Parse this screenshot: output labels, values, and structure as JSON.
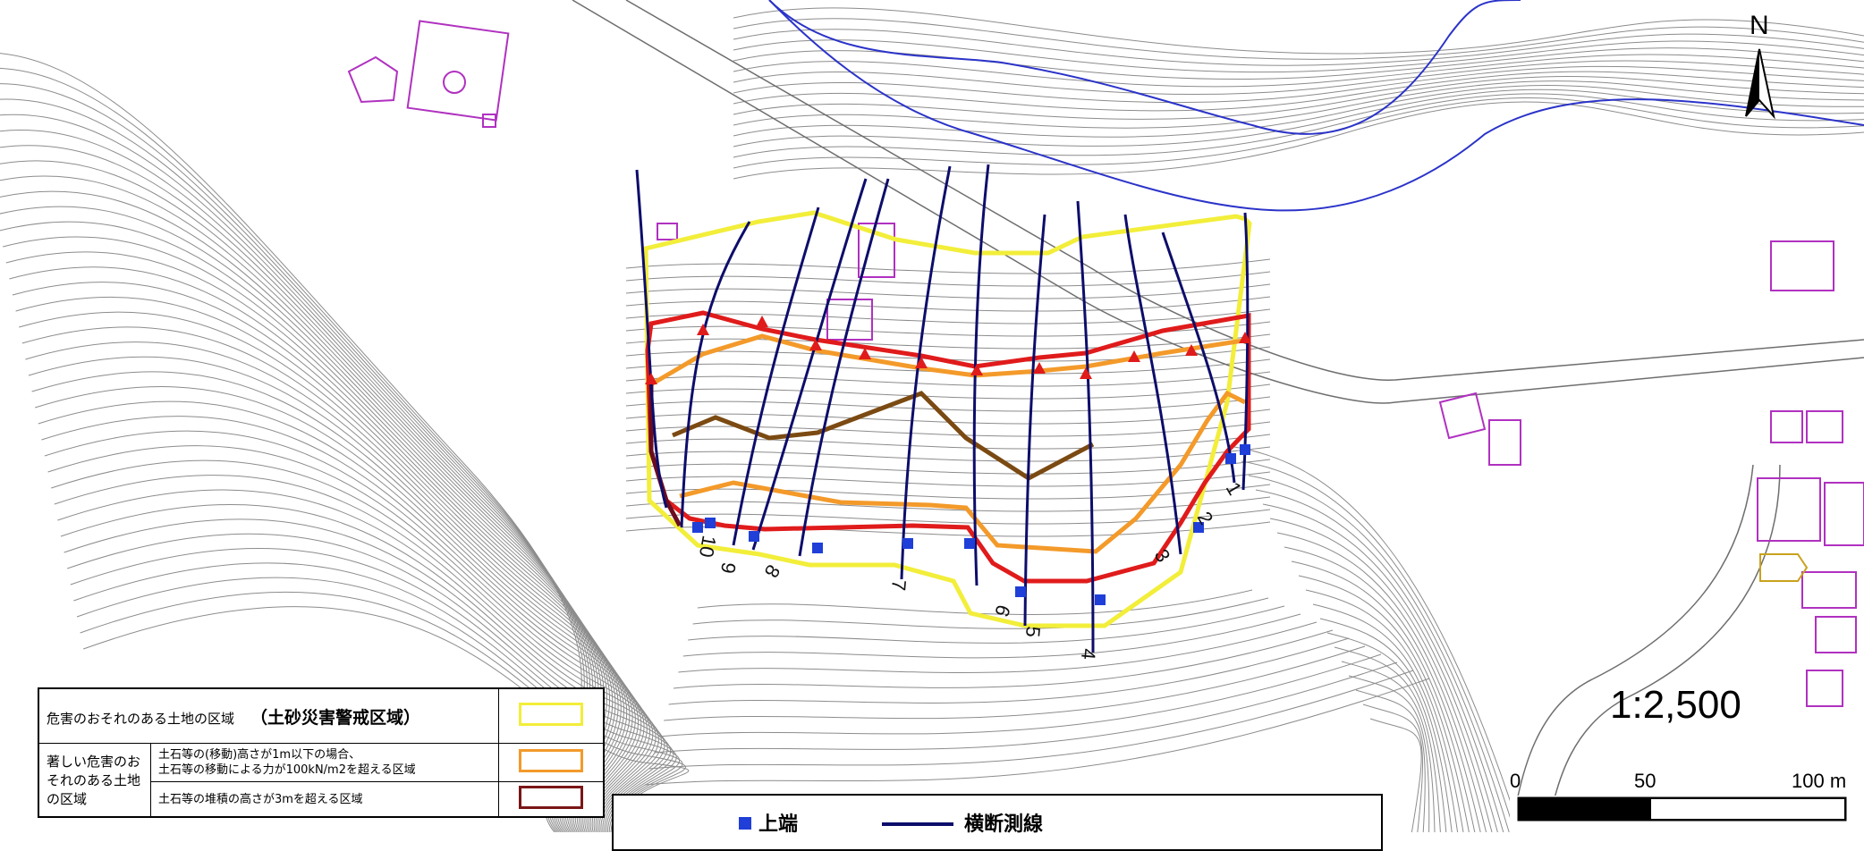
{
  "north": {
    "label": "N"
  },
  "scale": {
    "ratio": "1:2,500",
    "ticks": [
      "0",
      "50",
      "100 m"
    ]
  },
  "legend": {
    "row_yellow": {
      "title": "危害のおそれのある土地の区域",
      "emphasis": "（土砂災害警戒区域）",
      "color": "#f2ee3a"
    },
    "group_label": "著しい危害のおそれのある土地の区域",
    "row_orange": {
      "line1": "土石等の(移動)高さが1m以下の場合、",
      "line2": "土石等の移動による力が100kN/m2を超える区域",
      "color": "#f39a2a"
    },
    "row_darkred": {
      "text": "土石等の堆積の高さが3mを超える区域",
      "color": "#7a1616"
    }
  },
  "legend2": {
    "upper_label": "上端",
    "survey_label": "横断測線"
  },
  "section_numbers": [
    "1",
    "2",
    "3",
    "4",
    "5",
    "6",
    "7",
    "8",
    "9",
    "10"
  ],
  "colors": {
    "survey_line": "#0d0d6b",
    "upper_edge": "#1f3fd8",
    "red_line": "#e01b1b",
    "brown_line": "#7b4a12",
    "triangle": "#e01b1b",
    "contour": "#8c8c8c",
    "building": "#b031c0",
    "river": "#2b33c9"
  }
}
